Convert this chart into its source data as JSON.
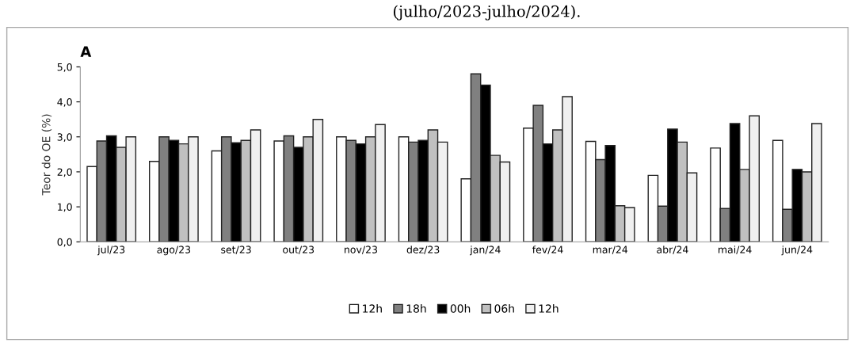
{
  "chart_data": {
    "type": "bar",
    "title": "A",
    "ylabel": "Teor do OE (%)",
    "annotations": [
      "(julho/2023-julho/2024)."
    ],
    "categories": [
      "jul/23",
      "ago/23",
      "set/23",
      "out/23",
      "nov/23",
      "dez/23",
      "jan/24",
      "fev/24",
      "mar/24",
      "abr/24",
      "mai/24",
      "jun/24"
    ],
    "series": [
      {
        "name": "12h",
        "color": "#ffffff",
        "values": [
          2.15,
          2.3,
          2.6,
          2.88,
          3.0,
          3.0,
          1.8,
          3.25,
          2.87,
          1.9,
          2.68,
          2.9
        ]
      },
      {
        "name": "18h",
        "color": "#808080",
        "values": [
          2.88,
          3.0,
          3.0,
          3.03,
          2.9,
          2.85,
          4.8,
          3.9,
          2.35,
          1.02,
          0.95,
          0.93
        ]
      },
      {
        "name": "00h",
        "color": "#000000",
        "values": [
          3.03,
          2.9,
          2.83,
          2.7,
          2.8,
          2.9,
          4.48,
          2.8,
          2.75,
          3.22,
          3.38,
          2.07
        ]
      },
      {
        "name": "06h",
        "color": "#c0c0c0",
        "values": [
          2.7,
          2.8,
          2.9,
          3.0,
          3.0,
          3.2,
          2.47,
          3.2,
          1.03,
          2.85,
          2.07,
          2.0
        ]
      },
      {
        "name": "12h",
        "color": "#f0f0f0",
        "values": [
          3.0,
          3.0,
          3.2,
          3.5,
          3.35,
          2.85,
          2.28,
          4.15,
          0.98,
          1.97,
          3.6,
          3.38
        ]
      }
    ],
    "ylim": [
      0,
      5
    ],
    "yticks": [
      {
        "value": 0,
        "label": "0,0"
      },
      {
        "value": 1,
        "label": "1,0"
      },
      {
        "value": 2,
        "label": "2,0"
      },
      {
        "value": 3,
        "label": "3,0"
      },
      {
        "value": 4,
        "label": "4,0"
      },
      {
        "value": 5,
        "label": "5,0"
      }
    ],
    "grid": false,
    "legend": "bottom"
  }
}
